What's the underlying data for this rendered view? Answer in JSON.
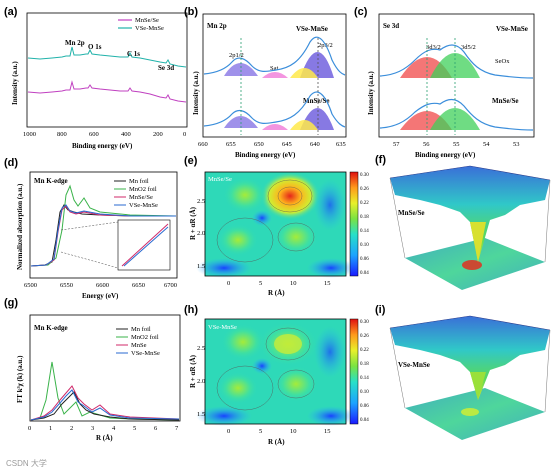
{
  "panels": {
    "a": {
      "label": "(a)",
      "legend": [
        "MnSe/Se",
        "V<sub>Se</sub>-MnSe"
      ],
      "legend_text": [
        "MnSe/Se",
        "VSe-MnSe"
      ],
      "annotations": [
        "Mn 2p",
        "O 1s",
        "C 1s",
        "Se 3d"
      ],
      "xlabel": "Binding energy (eV)",
      "ylabel": "Intensity (a.u.)",
      "xticks": [
        "1000",
        "800",
        "600",
        "400",
        "200",
        "0"
      ],
      "colors": {
        "mnse_se": "#c040c0",
        "vse_mnse": "#20b2aa"
      }
    },
    "b": {
      "label": "(b)",
      "title": "Mn 2p",
      "labels": [
        "VSe-MnSe",
        "MnSe/Se",
        "2p1/2",
        "Sat.",
        "2p3/2"
      ],
      "xlabel": "Binding energy (eV)",
      "ylabel": "Intensity (a.u.)",
      "xticks": [
        "660",
        "655",
        "650",
        "645",
        "640",
        "635"
      ]
    },
    "c": {
      "label": "(c)",
      "title": "Se 3d",
      "labels": [
        "VSe-MnSe",
        "MnSe/Se",
        "3d3/2",
        "3d5/2",
        "SeOx"
      ],
      "xlabel": "Binding energy (eV)",
      "ylabel": "Intensity (a.u.)",
      "xticks": [
        "57",
        "56",
        "55",
        "54",
        "53"
      ]
    },
    "d": {
      "label": "(d)",
      "title": "Mn K-edge",
      "legend": [
        "Mn foil",
        "MnO2 foil",
        "MnSe/Se",
        "VSe-MnSe"
      ],
      "xlabel": "Energy (eV)",
      "ylabel": "Normalized absorption (a.u.)",
      "xticks": [
        "6500",
        "6550",
        "6600",
        "6650",
        "6700"
      ]
    },
    "e": {
      "label": "(e)",
      "tag": "MnSe/Se",
      "xlabel": "R (Å)",
      "ylabel": "R + αR (Å)",
      "xticks": [
        "0",
        "5",
        "10",
        "15"
      ],
      "yticks": [
        "1.5",
        "2.0",
        "2.5"
      ],
      "cbar_ticks": [
        "0.30",
        "0.26",
        "0.22",
        "0.18",
        "0.14",
        "0.10",
        "0.06",
        "0.04"
      ]
    },
    "f": {
      "label": "(f)",
      "tag": "MnSe/Se"
    },
    "g": {
      "label": "(g)",
      "title": "Mn K-edge",
      "legend": [
        "Mn foil",
        "MnO2 foil",
        "MnSe",
        "VSe-MnSe"
      ],
      "xlabel": "R (Å)",
      "ylabel": "FT k³χ (k) (a.u.)",
      "xticks": [
        "0",
        "1",
        "2",
        "3",
        "4",
        "5",
        "6",
        "7"
      ]
    },
    "h": {
      "label": "(h)",
      "tag": "VSe-MnSe",
      "xlabel": "R (Å)",
      "ylabel": "R + αR (Å)",
      "xticks": [
        "0",
        "5",
        "10",
        "15"
      ],
      "yticks": [
        "1.5",
        "2.0",
        "2.5"
      ],
      "cbar_ticks": [
        "0.30",
        "0.26",
        "0.22",
        "0.18",
        "0.14",
        "0.10",
        "0.06",
        "0.04"
      ]
    },
    "i": {
      "label": "(i)",
      "tag": "VSe-MnSe"
    }
  },
  "watermark": "CSDN 大学"
}
